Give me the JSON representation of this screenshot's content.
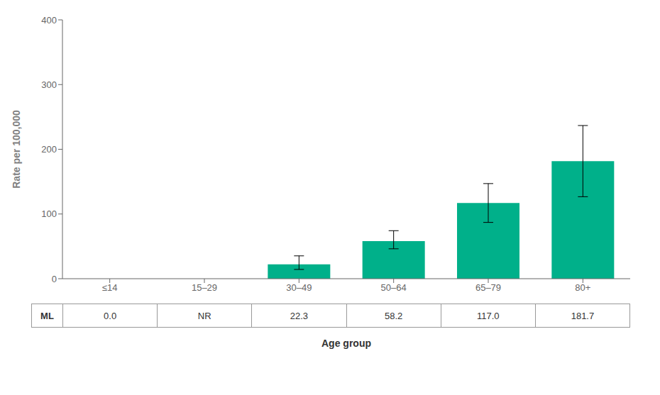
{
  "chart_data": {
    "type": "bar",
    "categories": [
      "≤14",
      "15–29",
      "30–49",
      "50–64",
      "65–79",
      "80+"
    ],
    "values": [
      null,
      null,
      22.3,
      58.2,
      117.0,
      181.7
    ],
    "error_low": [
      null,
      null,
      8.0,
      12.0,
      30.0,
      55.0
    ],
    "error_high": [
      null,
      null,
      13.0,
      16.0,
      30.0,
      55.0
    ],
    "color": "#00B08A",
    "ylabel": "Rate per 100,000",
    "xlabel": "Age group",
    "ylim": [
      0,
      400
    ],
    "yticks": [
      0,
      100,
      200,
      300,
      400
    ],
    "grid": false,
    "table": {
      "row_label": "ML",
      "cells": [
        "0.0",
        "NR",
        "22.3",
        "58.2",
        "117.0",
        "181.7"
      ]
    }
  }
}
